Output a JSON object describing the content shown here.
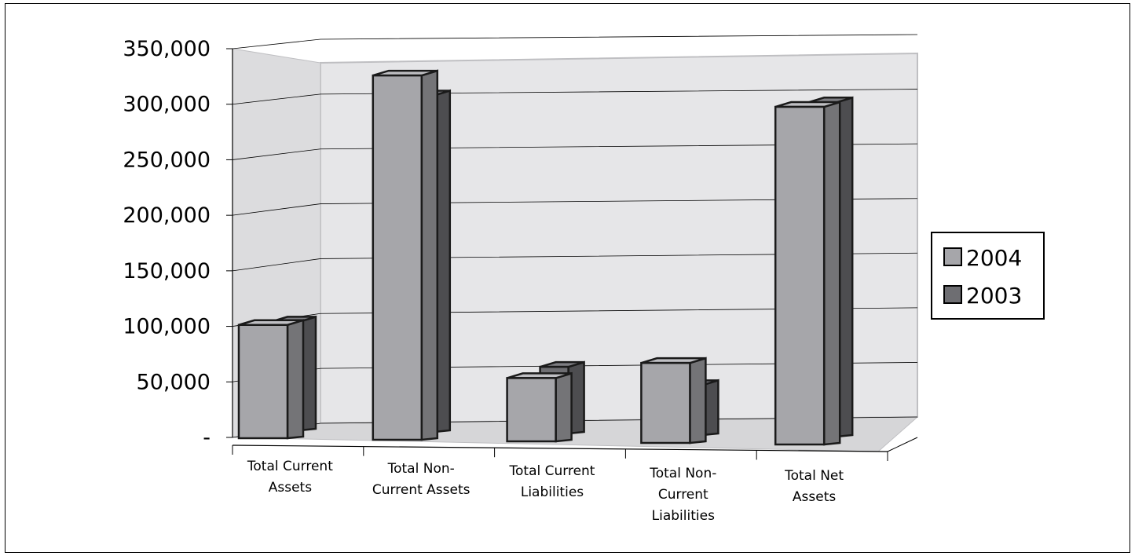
{
  "chart_data": {
    "type": "bar",
    "title": "",
    "xlabel": "",
    "ylabel": "",
    "categories": [
      [
        "Total Current",
        "Assets"
      ],
      [
        "Total Non-",
        "Current Assets"
      ],
      [
        "Total Current",
        "Liabilities"
      ],
      [
        "Total Non-",
        "Current",
        "Liabilities"
      ],
      [
        "Total Net",
        "Assets"
      ]
    ],
    "series": [
      {
        "name": "2004",
        "values": [
          102000,
          328000,
          57000,
          72000,
          304000
        ],
        "color": "#a6a6aa"
      },
      {
        "name": "2003",
        "values": [
          98000,
          303000,
          60000,
          45000,
          301000
        ],
        "color": "#6e6e72"
      }
    ],
    "ylim": [
      0,
      350000
    ],
    "yticks": [
      0,
      50000,
      100000,
      150000,
      200000,
      250000,
      300000,
      350000
    ],
    "ytick_labels": [
      "-",
      "50,000",
      "100,000",
      "150,000",
      "200,000",
      "250,000",
      "300,000",
      "350,000"
    ],
    "grid": true,
    "legend_position": "right",
    "style": "3d-clustered-column",
    "wall_color": "#e6e6e8"
  }
}
